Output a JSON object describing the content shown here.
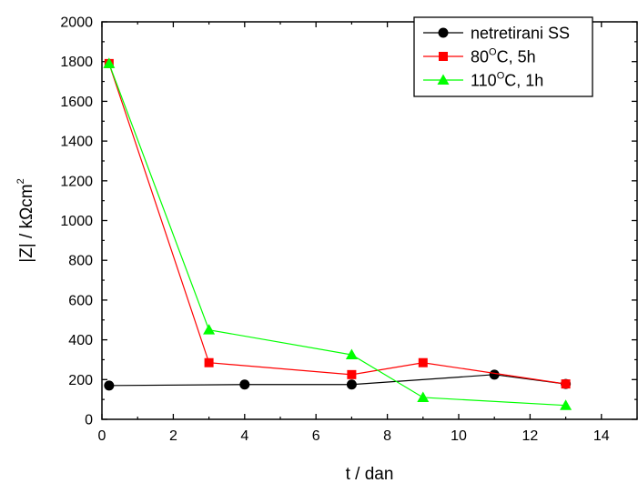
{
  "chart_data": {
    "type": "line",
    "title": "",
    "xlabel": "t / dan",
    "ylabel_main": "|Z| / kΩcm",
    "ylabel_sup": "2",
    "xlim": [
      0,
      15
    ],
    "ylim": [
      0,
      2000
    ],
    "xticks": [
      0,
      2,
      4,
      6,
      8,
      10,
      12,
      14
    ],
    "yticks": [
      0,
      200,
      400,
      600,
      800,
      1000,
      1200,
      1400,
      1600,
      1800,
      2000
    ],
    "grid": false,
    "legend_position": "top-right",
    "series": [
      {
        "name": "netretirani SS",
        "label_parts": [
          {
            "text": "netretirani SS",
            "sup": false
          }
        ],
        "color": "#000000",
        "marker": "circle",
        "x": [
          0.2,
          4,
          7,
          11,
          13
        ],
        "y": [
          170,
          175,
          175,
          225,
          178
        ]
      },
      {
        "name": "80°C, 5h",
        "label_parts": [
          {
            "text": "80",
            "sup": false
          },
          {
            "text": "O",
            "sup": true
          },
          {
            "text": "C, 5h",
            "sup": false
          }
        ],
        "color": "#ff0000",
        "marker": "square",
        "x": [
          0.2,
          3,
          7,
          9,
          13
        ],
        "y": [
          1790,
          285,
          225,
          285,
          178
        ]
      },
      {
        "name": "110°C, 1h",
        "label_parts": [
          {
            "text": "110",
            "sup": false
          },
          {
            "text": "O",
            "sup": true
          },
          {
            "text": "C, 1h",
            "sup": false
          }
        ],
        "color": "#00ff00",
        "marker": "triangle",
        "x": [
          0.2,
          3,
          7,
          9,
          13
        ],
        "y": [
          1790,
          450,
          325,
          110,
          70
        ]
      }
    ]
  }
}
